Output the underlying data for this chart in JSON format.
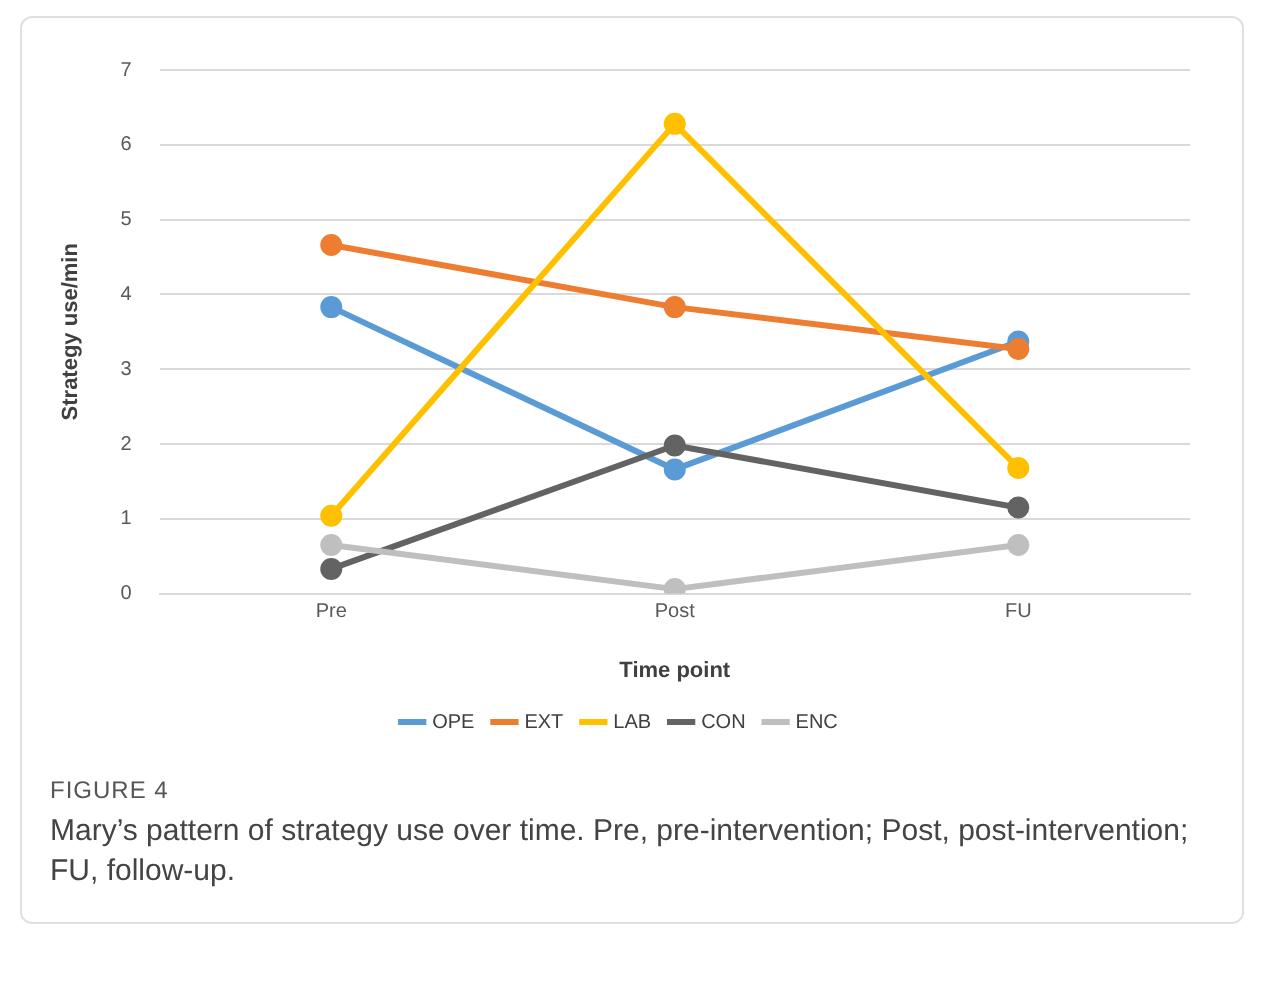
{
  "chart_data": {
    "type": "line",
    "xlabel": "Time point",
    "ylabel": "Strategy use/min",
    "categories": [
      "Pre",
      "Post",
      "FU"
    ],
    "series": [
      {
        "name": "OPE",
        "color": "#5b9bd5",
        "values": [
          3.83,
          1.66,
          3.37
        ]
      },
      {
        "name": "EXT",
        "color": "#ed7d31",
        "values": [
          4.66,
          3.83,
          3.27
        ]
      },
      {
        "name": "LAB",
        "color": "#ffc000",
        "values": [
          1.04,
          6.28,
          1.68
        ]
      },
      {
        "name": "CON",
        "color": "#636363",
        "values": [
          0.33,
          1.98,
          1.15
        ]
      },
      {
        "name": "ENC",
        "color": "#bfbfbf",
        "values": [
          0.65,
          0.06,
          0.65
        ]
      }
    ],
    "ylim": [
      0,
      7
    ],
    "yticks": [
      0,
      1,
      2,
      3,
      4,
      5,
      6,
      7
    ],
    "grid": "y",
    "legend": "bottom",
    "marker": "circle",
    "line_style": "solid",
    "annotations": [
      "FIGURE 4",
      "Mary’s pattern of strategy use over time. Pre, pre-intervention; Post, post-intervention; FU, follow-up."
    ]
  }
}
